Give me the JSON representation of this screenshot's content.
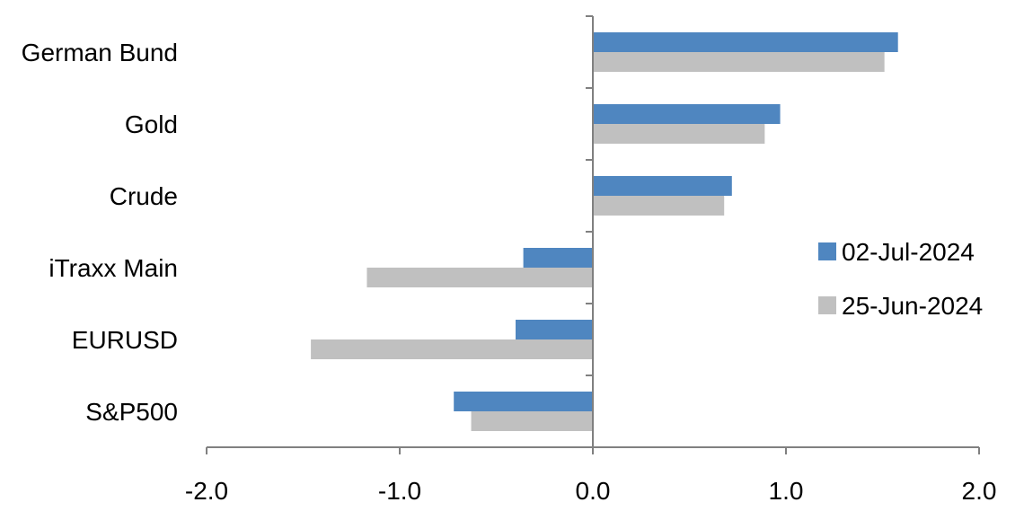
{
  "chart_data": {
    "type": "bar",
    "orientation": "horizontal",
    "categories": [
      "German Bund",
      "Gold",
      "Crude",
      "iTraxx Main",
      "EURUSD",
      "S&P500"
    ],
    "series": [
      {
        "name": "02-Jul-2024",
        "color": "#4f86c0",
        "values": [
          1.58,
          0.97,
          0.72,
          -0.36,
          -0.4,
          -0.72
        ]
      },
      {
        "name": "25-Jun-2024",
        "color": "#c0c0c0",
        "values": [
          1.51,
          0.89,
          0.68,
          -1.17,
          -1.46,
          -0.63
        ]
      }
    ],
    "xlim": [
      -2.0,
      2.0
    ],
    "xticks": [
      "-2.0",
      "-1.0",
      "0.0",
      "1.0",
      "2.0"
    ],
    "xtick_values": [
      -2,
      -1,
      0,
      1,
      2
    ],
    "grid": false,
    "legend": "right"
  }
}
